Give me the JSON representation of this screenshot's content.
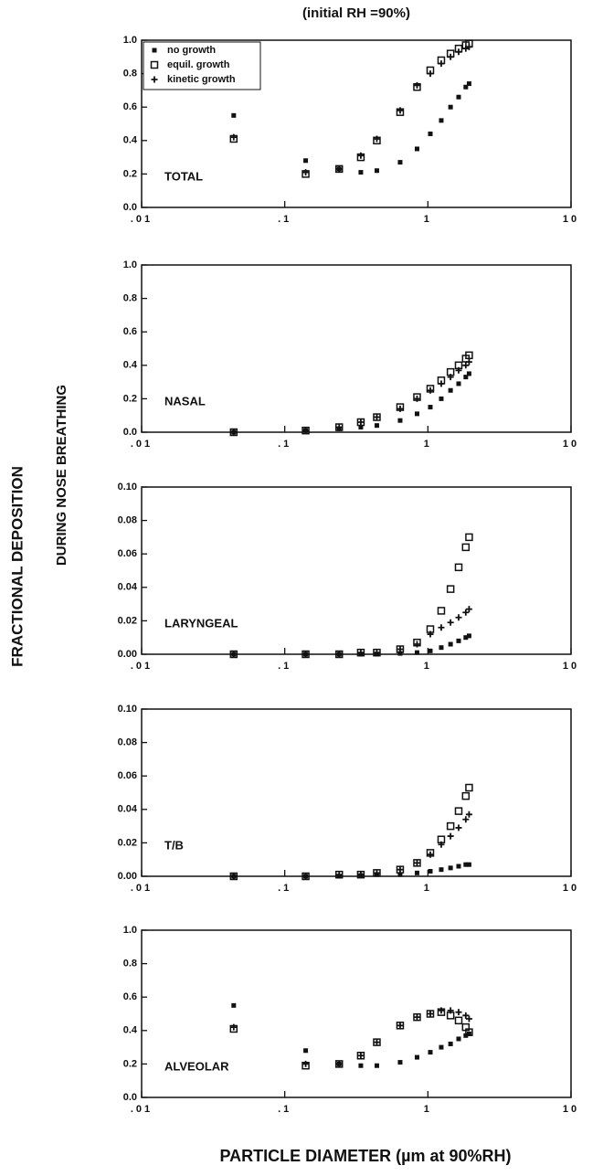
{
  "figure": {
    "title": "(initial RH =90%)",
    "ylabel": "FRACTIONAL DEPOSITION",
    "ylabel2": "DURING NOSE BREATHING",
    "xlabel": "PARTICLE DIAMETER (µm at 90%RH)"
  },
  "chart_data": [
    {
      "type": "scatter",
      "label": "TOTAL",
      "log_x": true,
      "legend": "upper left",
      "xlim": [
        0.01,
        10
      ],
      "xticks": [
        {
          "value": 0.01,
          "label": ".01"
        },
        {
          "value": 0.1,
          "label": ".1"
        },
        1,
        10
      ],
      "ylim": [
        0,
        1
      ],
      "yticks": [
        {
          "value": 0,
          "label": "0.0"
        },
        0.2,
        0.4,
        0.6,
        0.8,
        {
          "value": 1,
          "label": "1.0"
        }
      ],
      "x": [
        0.044,
        0.14,
        0.24,
        0.34,
        0.44,
        0.64,
        0.84,
        1.04,
        1.24,
        1.44,
        1.64,
        1.84,
        1.94
      ],
      "series": [
        {
          "name": "no growth",
          "color": "#111",
          "marker": "square-filled",
          "values": [
            0.55,
            0.28,
            0.23,
            0.21,
            0.22,
            0.27,
            0.35,
            0.44,
            0.52,
            0.6,
            0.66,
            0.72,
            0.74
          ]
        },
        {
          "name": "equil. growth",
          "color": "#111",
          "marker": "square-open",
          "values": [
            0.41,
            0.2,
            0.23,
            0.3,
            0.4,
            0.57,
            0.72,
            0.82,
            0.88,
            0.92,
            0.95,
            0.97,
            0.98
          ]
        },
        {
          "name": "kinetic growth",
          "color": "#111",
          "marker": "plus",
          "values": [
            0.42,
            0.21,
            0.23,
            0.31,
            0.41,
            0.58,
            0.73,
            0.8,
            0.86,
            0.9,
            0.93,
            0.95,
            0.96
          ]
        }
      ]
    },
    {
      "type": "scatter",
      "label": "NASAL",
      "log_x": true,
      "xlim": [
        0.01,
        10
      ],
      "xticks": [
        {
          "value": 0.01,
          "label": ".01"
        },
        {
          "value": 0.1,
          "label": ".1"
        },
        1,
        10
      ],
      "ylim": [
        0,
        1
      ],
      "yticks": [
        {
          "value": 0,
          "label": "0.0"
        },
        0.2,
        0.4,
        0.6,
        0.8,
        {
          "value": 1,
          "label": "1.0"
        }
      ],
      "x": [
        0.044,
        0.14,
        0.24,
        0.34,
        0.44,
        0.64,
        0.84,
        1.04,
        1.24,
        1.44,
        1.64,
        1.84,
        1.94
      ],
      "series": [
        {
          "color": "#111",
          "marker": "square-filled",
          "values": [
            0,
            0.01,
            0.02,
            0.03,
            0.04,
            0.07,
            0.11,
            0.15,
            0.2,
            0.25,
            0.29,
            0.33,
            0.35
          ]
        },
        {
          "color": "#111",
          "marker": "square-open",
          "values": [
            0,
            0.01,
            0.03,
            0.06,
            0.09,
            0.15,
            0.21,
            0.26,
            0.31,
            0.36,
            0.4,
            0.44,
            0.46
          ]
        },
        {
          "color": "#111",
          "marker": "plus",
          "values": [
            0,
            0.01,
            0.03,
            0.06,
            0.09,
            0.14,
            0.2,
            0.25,
            0.29,
            0.33,
            0.37,
            0.4,
            0.42
          ]
        }
      ]
    },
    {
      "type": "scatter",
      "label": "LARYNGEAL",
      "log_x": true,
      "xlim": [
        0.01,
        10
      ],
      "xticks": [
        {
          "value": 0.01,
          "label": ".01"
        },
        {
          "value": 0.1,
          "label": ".1"
        },
        1,
        10
      ],
      "ylim": [
        0,
        0.1
      ],
      "yticks": [
        {
          "value": 0,
          "label": "0.00"
        },
        0.02,
        0.04,
        0.06,
        0.08,
        {
          "value": 0.1,
          "label": "0.10"
        }
      ],
      "x": [
        0.044,
        0.14,
        0.24,
        0.34,
        0.44,
        0.64,
        0.84,
        1.04,
        1.24,
        1.44,
        1.64,
        1.84,
        1.94
      ],
      "series": [
        {
          "color": "#111",
          "marker": "square-filled",
          "values": [
            0,
            0,
            0,
            0,
            0,
            0.0005,
            0.001,
            0.002,
            0.004,
            0.006,
            0.008,
            0.01,
            0.011
          ]
        },
        {
          "color": "#111",
          "marker": "square-open",
          "values": [
            0,
            0,
            0,
            0.001,
            0.001,
            0.003,
            0.007,
            0.015,
            0.026,
            0.039,
            0.052,
            0.064,
            0.07
          ]
        },
        {
          "color": "#111",
          "marker": "plus",
          "values": [
            0,
            0,
            0,
            0.001,
            0.001,
            0.003,
            0.006,
            0.012,
            0.016,
            0.019,
            0.022,
            0.025,
            0.027
          ]
        }
      ]
    },
    {
      "type": "scatter",
      "label": "T/B",
      "log_x": true,
      "xlim": [
        0.01,
        10
      ],
      "xticks": [
        {
          "value": 0.01,
          "label": ".01"
        },
        {
          "value": 0.1,
          "label": ".1"
        },
        1,
        10
      ],
      "ylim": [
        0,
        0.1
      ],
      "yticks": [
        {
          "value": 0,
          "label": "0.00"
        },
        0.02,
        0.04,
        0.06,
        0.08,
        {
          "value": 0.1,
          "label": "0.10"
        }
      ],
      "x": [
        0.044,
        0.14,
        0.24,
        0.34,
        0.44,
        0.64,
        0.84,
        1.04,
        1.24,
        1.44,
        1.64,
        1.84,
        1.94
      ],
      "series": [
        {
          "color": "#111",
          "marker": "square-filled",
          "values": [
            0,
            0,
            0,
            0.0005,
            0.001,
            0.001,
            0.002,
            0.003,
            0.004,
            0.005,
            0.006,
            0.007,
            0.007
          ]
        },
        {
          "color": "#111",
          "marker": "square-open",
          "values": [
            0,
            0,
            0.001,
            0.001,
            0.002,
            0.004,
            0.008,
            0.014,
            0.022,
            0.03,
            0.039,
            0.048,
            0.053
          ]
        },
        {
          "color": "#111",
          "marker": "plus",
          "values": [
            0,
            0,
            0.001,
            0.001,
            0.002,
            0.004,
            0.008,
            0.013,
            0.019,
            0.024,
            0.029,
            0.034,
            0.037
          ]
        }
      ]
    },
    {
      "type": "scatter",
      "label": "ALVEOLAR",
      "log_x": true,
      "xlim": [
        0.01,
        10
      ],
      "xticks": [
        {
          "value": 0.01,
          "label": ".01"
        },
        {
          "value": 0.1,
          "label": ".1"
        },
        1,
        10
      ],
      "ylim": [
        0,
        1
      ],
      "yticks": [
        {
          "value": 0,
          "label": "0.0"
        },
        0.2,
        0.4,
        0.6,
        0.8,
        {
          "value": 1,
          "label": "1.0"
        }
      ],
      "x": [
        0.044,
        0.14,
        0.24,
        0.34,
        0.44,
        0.64,
        0.84,
        1.04,
        1.24,
        1.44,
        1.64,
        1.84,
        1.94
      ],
      "series": [
        {
          "color": "#111",
          "marker": "square-filled",
          "values": [
            0.55,
            0.28,
            0.2,
            0.19,
            0.19,
            0.21,
            0.24,
            0.27,
            0.3,
            0.32,
            0.35,
            0.37,
            0.38
          ]
        },
        {
          "color": "#111",
          "marker": "square-open",
          "values": [
            0.41,
            0.19,
            0.2,
            0.25,
            0.33,
            0.43,
            0.48,
            0.5,
            0.51,
            0.49,
            0.46,
            0.42,
            0.39
          ]
        },
        {
          "color": "#111",
          "marker": "plus",
          "values": [
            0.42,
            0.2,
            0.2,
            0.25,
            0.33,
            0.43,
            0.48,
            0.5,
            0.52,
            0.52,
            0.51,
            0.49,
            0.47
          ]
        }
      ]
    }
  ]
}
